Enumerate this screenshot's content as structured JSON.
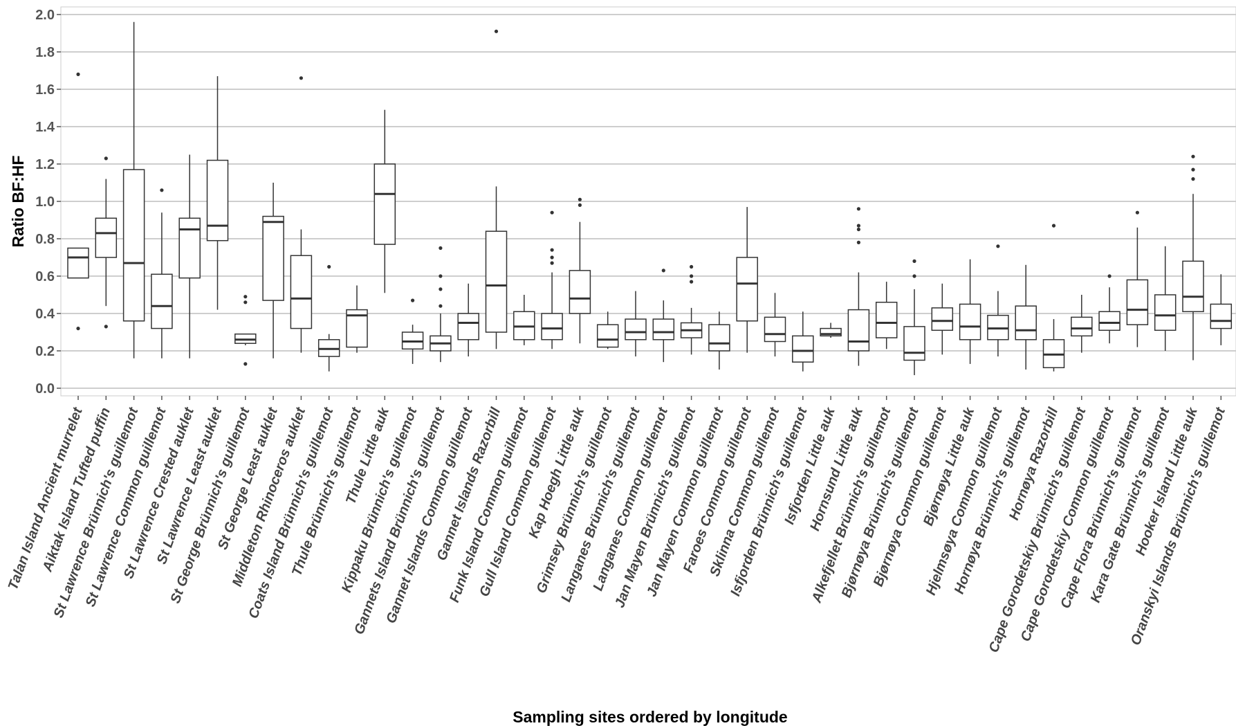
{
  "chart_data": {
    "type": "box",
    "xlabel": "Sampling sites ordered by longitude",
    "ylabel": "Ratio BF:HF",
    "ylim": [
      0,
      2.0
    ],
    "yticks": [
      "0.0",
      "0.2",
      "0.4",
      "0.6",
      "0.8",
      "1.0",
      "1.2",
      "1.4",
      "1.6",
      "1.8",
      "2.0"
    ],
    "grid": "horizontal",
    "legend": "none",
    "colors": {
      "box_line": "#333333",
      "grid": "#bdbdbd",
      "panel_border": "#cccccc",
      "background": "#ffffff"
    },
    "boxes": [
      {
        "label": "Talan Island Ancient murrelet",
        "whisker_low": 0.59,
        "q1": 0.59,
        "median": 0.7,
        "q3": 0.75,
        "whisker_high": 0.75,
        "outliers": [
          1.68,
          0.32
        ]
      },
      {
        "label": "Aiktak Island Tufted puffin",
        "whisker_low": 0.44,
        "q1": 0.7,
        "median": 0.83,
        "q3": 0.91,
        "whisker_high": 1.12,
        "outliers": [
          1.23,
          0.33
        ]
      },
      {
        "label": "St Lawrence Brünnich's guillemot",
        "whisker_low": 0.16,
        "q1": 0.36,
        "median": 0.67,
        "q3": 1.17,
        "whisker_high": 1.96,
        "outliers": []
      },
      {
        "label": "St Lawrence Common guillemot",
        "whisker_low": 0.16,
        "q1": 0.32,
        "median": 0.44,
        "q3": 0.61,
        "whisker_high": 0.94,
        "outliers": [
          1.06
        ]
      },
      {
        "label": "St Lawrence Crested auklet",
        "whisker_low": 0.16,
        "q1": 0.59,
        "median": 0.85,
        "q3": 0.91,
        "whisker_high": 1.25,
        "outliers": []
      },
      {
        "label": "St Lawrence Least auklet",
        "whisker_low": 0.42,
        "q1": 0.79,
        "median": 0.87,
        "q3": 1.22,
        "whisker_high": 1.67,
        "outliers": []
      },
      {
        "label": "St George Brünnich's guillemot",
        "whisker_low": 0.23,
        "q1": 0.24,
        "median": 0.26,
        "q3": 0.29,
        "whisker_high": 0.29,
        "outliers": [
          0.49,
          0.46,
          0.13
        ]
      },
      {
        "label": "St George Least auklet",
        "whisker_low": 0.16,
        "q1": 0.47,
        "median": 0.89,
        "q3": 0.92,
        "whisker_high": 1.1,
        "outliers": []
      },
      {
        "label": "Middleton Rhinoceros auklet",
        "whisker_low": 0.19,
        "q1": 0.32,
        "median": 0.48,
        "q3": 0.71,
        "whisker_high": 0.85,
        "outliers": [
          1.66
        ]
      },
      {
        "label": "Coats Island Brünnich's guillemot",
        "whisker_low": 0.09,
        "q1": 0.17,
        "median": 0.21,
        "q3": 0.26,
        "whisker_high": 0.29,
        "outliers": [
          0.65
        ]
      },
      {
        "label": "Thule Brünnich's guillemot",
        "whisker_low": 0.19,
        "q1": 0.22,
        "median": 0.39,
        "q3": 0.42,
        "whisker_high": 0.55,
        "outliers": []
      },
      {
        "label": "Thule Little auk",
        "whisker_low": 0.51,
        "q1": 0.77,
        "median": 1.04,
        "q3": 1.2,
        "whisker_high": 1.49,
        "outliers": []
      },
      {
        "label": "Kippaku Brünnich's guillemot",
        "whisker_low": 0.13,
        "q1": 0.21,
        "median": 0.25,
        "q3": 0.3,
        "whisker_high": 0.34,
        "outliers": [
          0.47
        ]
      },
      {
        "label": "Gannets Island Brünnich's guillemot",
        "whisker_low": 0.14,
        "q1": 0.2,
        "median": 0.24,
        "q3": 0.28,
        "whisker_high": 0.4,
        "outliers": [
          0.75,
          0.6,
          0.53,
          0.44
        ]
      },
      {
        "label": "Gannet Islands Common guillemot",
        "whisker_low": 0.17,
        "q1": 0.26,
        "median": 0.35,
        "q3": 0.4,
        "whisker_high": 0.56,
        "outliers": []
      },
      {
        "label": "Gannet Islands Razorbill",
        "whisker_low": 0.21,
        "q1": 0.3,
        "median": 0.55,
        "q3": 0.84,
        "whisker_high": 1.08,
        "outliers": [
          1.91
        ]
      },
      {
        "label": "Funk Island Common guillemot",
        "whisker_low": 0.23,
        "q1": 0.26,
        "median": 0.33,
        "q3": 0.41,
        "whisker_high": 0.5,
        "outliers": []
      },
      {
        "label": "Gull Island Common guillemot",
        "whisker_low": 0.21,
        "q1": 0.26,
        "median": 0.32,
        "q3": 0.4,
        "whisker_high": 0.62,
        "outliers": [
          0.94,
          0.74,
          0.7,
          0.67
        ]
      },
      {
        "label": "Kap Hoegh Little auk",
        "whisker_low": 0.24,
        "q1": 0.4,
        "median": 0.48,
        "q3": 0.63,
        "whisker_high": 0.89,
        "outliers": [
          1.01,
          0.98
        ]
      },
      {
        "label": "Grimsey Brünnich's guillemot",
        "whisker_low": 0.21,
        "q1": 0.22,
        "median": 0.26,
        "q3": 0.34,
        "whisker_high": 0.41,
        "outliers": []
      },
      {
        "label": "Langanes Brünnich's guillemot",
        "whisker_low": 0.17,
        "q1": 0.26,
        "median": 0.3,
        "q3": 0.37,
        "whisker_high": 0.52,
        "outliers": []
      },
      {
        "label": "Langanes Common guillemot",
        "whisker_low": 0.14,
        "q1": 0.26,
        "median": 0.3,
        "q3": 0.37,
        "whisker_high": 0.47,
        "outliers": [
          0.63
        ]
      },
      {
        "label": "Jan Mayen Brünnich's guillemot",
        "whisker_low": 0.18,
        "q1": 0.27,
        "median": 0.31,
        "q3": 0.35,
        "whisker_high": 0.43,
        "outliers": [
          0.65,
          0.6,
          0.57
        ]
      },
      {
        "label": "Jan Mayen Common guillemot",
        "whisker_low": 0.1,
        "q1": 0.2,
        "median": 0.24,
        "q3": 0.34,
        "whisker_high": 0.41,
        "outliers": []
      },
      {
        "label": "Faroes Common guillemot",
        "whisker_low": 0.19,
        "q1": 0.36,
        "median": 0.56,
        "q3": 0.7,
        "whisker_high": 0.97,
        "outliers": []
      },
      {
        "label": "Sklinna Common guillemot",
        "whisker_low": 0.17,
        "q1": 0.25,
        "median": 0.29,
        "q3": 0.38,
        "whisker_high": 0.51,
        "outliers": []
      },
      {
        "label": "Isfjorden Brünnich's guillemot",
        "whisker_low": 0.09,
        "q1": 0.14,
        "median": 0.2,
        "q3": 0.28,
        "whisker_high": 0.41,
        "outliers": []
      },
      {
        "label": "Isfjorden Little auk",
        "whisker_low": 0.27,
        "q1": 0.28,
        "median": 0.29,
        "q3": 0.32,
        "whisker_high": 0.35,
        "outliers": []
      },
      {
        "label": "Hornsund Little auk",
        "whisker_low": 0.12,
        "q1": 0.2,
        "median": 0.25,
        "q3": 0.42,
        "whisker_high": 0.62,
        "outliers": [
          0.96,
          0.87,
          0.85,
          0.78
        ]
      },
      {
        "label": "Alkefjellet Brünnich's guillemot",
        "whisker_low": 0.21,
        "q1": 0.27,
        "median": 0.35,
        "q3": 0.46,
        "whisker_high": 0.57,
        "outliers": []
      },
      {
        "label": "Bjørnøya Brünnich's guillemot",
        "whisker_low": 0.07,
        "q1": 0.15,
        "median": 0.19,
        "q3": 0.33,
        "whisker_high": 0.53,
        "outliers": [
          0.68,
          0.6
        ]
      },
      {
        "label": "Bjørnøya Common guillemot",
        "whisker_low": 0.18,
        "q1": 0.31,
        "median": 0.36,
        "q3": 0.43,
        "whisker_high": 0.56,
        "outliers": []
      },
      {
        "label": "Bjørnøya Little auk",
        "whisker_low": 0.13,
        "q1": 0.26,
        "median": 0.33,
        "q3": 0.45,
        "whisker_high": 0.69,
        "outliers": []
      },
      {
        "label": "Hjelmsøya Common guillemot",
        "whisker_low": 0.17,
        "q1": 0.26,
        "median": 0.32,
        "q3": 0.39,
        "whisker_high": 0.52,
        "outliers": [
          0.76
        ]
      },
      {
        "label": "Hornøya Brünnich's guillemot",
        "whisker_low": 0.1,
        "q1": 0.26,
        "median": 0.31,
        "q3": 0.44,
        "whisker_high": 0.66,
        "outliers": []
      },
      {
        "label": "Hornøya Razorbill",
        "whisker_low": 0.09,
        "q1": 0.11,
        "median": 0.18,
        "q3": 0.26,
        "whisker_high": 0.37,
        "outliers": [
          0.87
        ]
      },
      {
        "label": "Cape Gorodetskiy Brünnich's guillemot",
        "whisker_low": 0.19,
        "q1": 0.28,
        "median": 0.32,
        "q3": 0.38,
        "whisker_high": 0.5,
        "outliers": []
      },
      {
        "label": "Cape Gorodetskiy Common guillemot",
        "whisker_low": 0.24,
        "q1": 0.31,
        "median": 0.35,
        "q3": 0.41,
        "whisker_high": 0.54,
        "outliers": [
          0.6
        ]
      },
      {
        "label": "Cape Flora Brünnich's guillemot",
        "whisker_low": 0.22,
        "q1": 0.34,
        "median": 0.42,
        "q3": 0.58,
        "whisker_high": 0.86,
        "outliers": [
          0.94
        ]
      },
      {
        "label": "Kara Gate Brünnich's guillemot",
        "whisker_low": 0.2,
        "q1": 0.31,
        "median": 0.39,
        "q3": 0.5,
        "whisker_high": 0.76,
        "outliers": []
      },
      {
        "label": "Hooker Island Little auk",
        "whisker_low": 0.15,
        "q1": 0.41,
        "median": 0.49,
        "q3": 0.68,
        "whisker_high": 1.04,
        "outliers": [
          1.24,
          1.17,
          1.12
        ]
      },
      {
        "label": "Oranskyi Islands Brünnich's guillemot",
        "whisker_low": 0.23,
        "q1": 0.32,
        "median": 0.36,
        "q3": 0.45,
        "whisker_high": 0.61,
        "outliers": []
      }
    ]
  }
}
